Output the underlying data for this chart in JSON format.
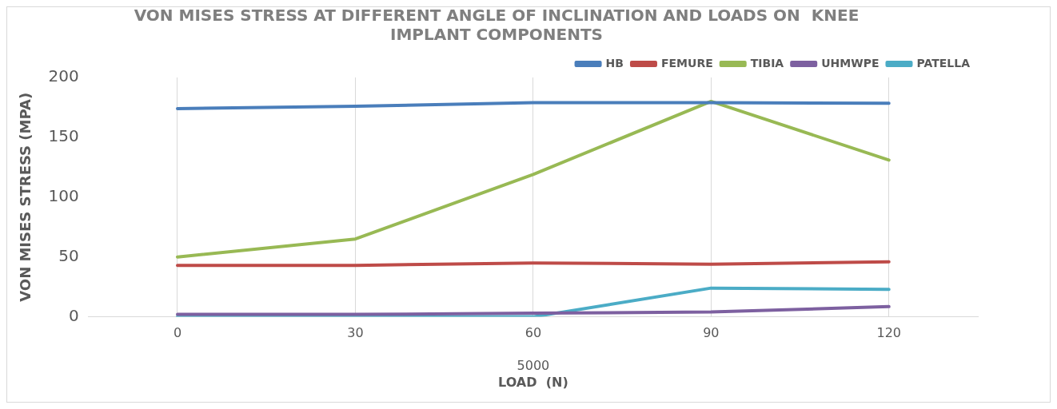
{
  "chart_data": {
    "type": "line",
    "title": "VON MISES STRESS AT DIFFERENT ANGLE OF INCLINATION AND LOADS ON  KNEE IMPLANT COMPONENTS",
    "xlabel": "LOAD  (N)",
    "ylabel": "VON MISES STRESS (MPA)",
    "annotations": [
      "5000"
    ],
    "categories": [
      "0",
      "30",
      "60",
      "90",
      "120"
    ],
    "series": [
      {
        "name": "HB",
        "color": "#4a7ebb",
        "values": [
          174,
          176,
          179,
          179,
          178.5
        ]
      },
      {
        "name": "FEMURE",
        "color": "#be4b48",
        "values": [
          43,
          43,
          45,
          44,
          46
        ]
      },
      {
        "name": "TIBIA",
        "color": "#98b954",
        "values": [
          50,
          65,
          119,
          180,
          131
        ]
      },
      {
        "name": "UHMWPE",
        "color": "#7d60a0",
        "values": [
          2,
          2,
          3,
          4,
          8.5
        ]
      },
      {
        "name": "PATELLA",
        "color": "#4bacc6",
        "values": [
          0,
          0,
          0,
          24,
          23
        ]
      }
    ],
    "ylim": [
      0,
      200
    ],
    "yticks": [
      0,
      50,
      100,
      150,
      200
    ],
    "grid": "x",
    "legend": "top right",
    "marker": "none",
    "line_style": "solid"
  }
}
